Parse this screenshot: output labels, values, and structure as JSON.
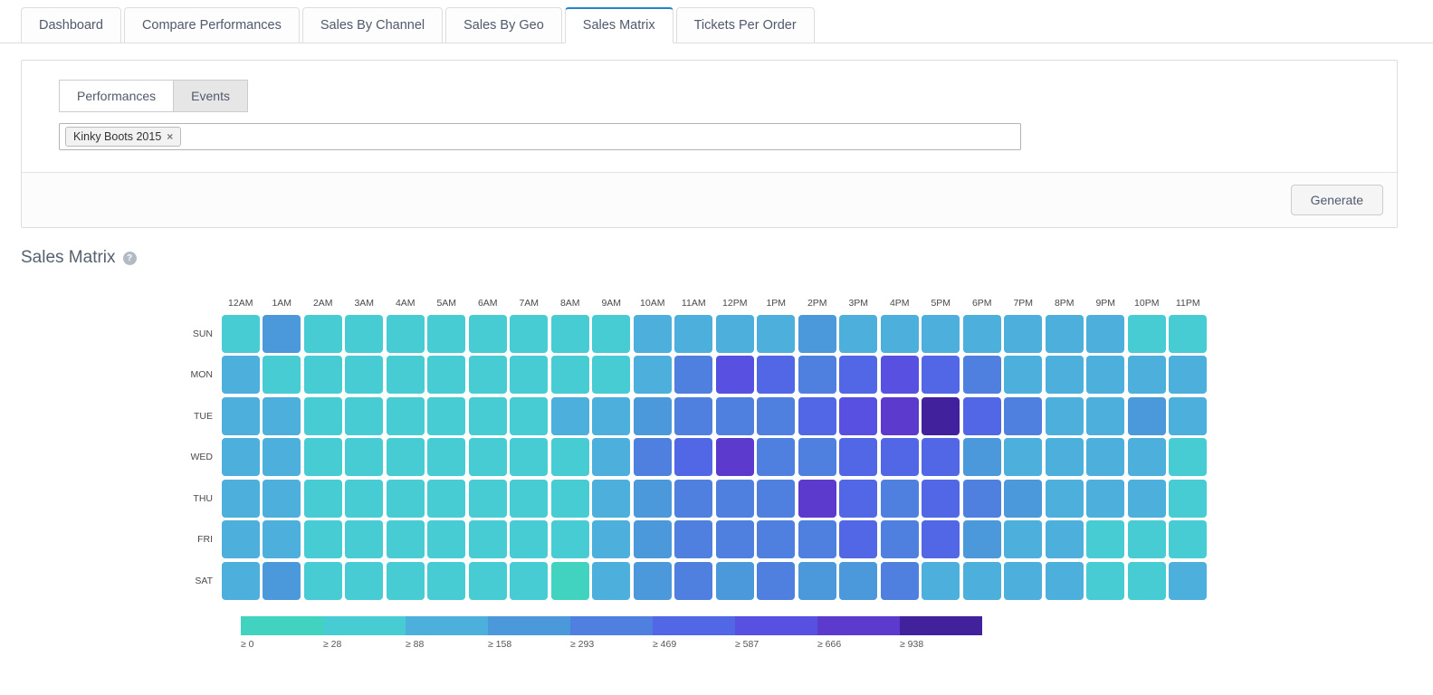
{
  "tabs": {
    "items": [
      {
        "label": "Dashboard",
        "active": false
      },
      {
        "label": "Compare Performances",
        "active": false
      },
      {
        "label": "Sales By Channel",
        "active": false
      },
      {
        "label": "Sales By Geo",
        "active": false
      },
      {
        "label": "Sales Matrix",
        "active": true
      },
      {
        "label": "Tickets Per Order",
        "active": false
      }
    ]
  },
  "filter_panel": {
    "mode_tabs": [
      {
        "label": "Performances",
        "pressed": false
      },
      {
        "label": "Events",
        "pressed": true
      }
    ],
    "selected_tags": [
      {
        "label": "Kinky Boots 2015",
        "remove_icon": "×"
      }
    ],
    "generate_label": "Generate"
  },
  "section": {
    "title": "Sales Matrix",
    "help_icon": "?"
  },
  "chart_data": {
    "type": "heatmap",
    "title": "Sales Matrix",
    "x_labels": [
      "12AM",
      "1AM",
      "2AM",
      "3AM",
      "4AM",
      "5AM",
      "6AM",
      "7AM",
      "8AM",
      "9AM",
      "10AM",
      "11AM",
      "12PM",
      "1PM",
      "2PM",
      "3PM",
      "4PM",
      "5PM",
      "6PM",
      "7PM",
      "8PM",
      "9PM",
      "10PM",
      "11PM"
    ],
    "y_labels": [
      "SUN",
      "MON",
      "TUE",
      "WED",
      "THU",
      "FRI",
      "SAT"
    ],
    "legend_thresholds": [
      0,
      28,
      88,
      158,
      293,
      469,
      587,
      666,
      938
    ],
    "legend_labels": [
      "≥ 0",
      "≥ 28",
      "≥ 88",
      "≥ 158",
      "≥ 293",
      "≥ 469",
      "≥ 587",
      "≥ 666",
      "≥ 938"
    ],
    "palette": [
      "#41d3c0",
      "#48ccd4",
      "#4cafdc",
      "#4b99da",
      "#4f80e0",
      "#5267e6",
      "#5750e0",
      "#5c3ace",
      "#41219c"
    ],
    "cells": [
      [
        1,
        3,
        1,
        1,
        1,
        1,
        1,
        1,
        1,
        1,
        2,
        2,
        2,
        2,
        3,
        2,
        2,
        2,
        2,
        2,
        2,
        2,
        1,
        1
      ],
      [
        2,
        1,
        1,
        1,
        1,
        1,
        1,
        1,
        1,
        1,
        2,
        4,
        6,
        5,
        4,
        5,
        6,
        5,
        4,
        2,
        2,
        2,
        2,
        2
      ],
      [
        2,
        2,
        1,
        1,
        1,
        1,
        1,
        1,
        2,
        2,
        3,
        4,
        4,
        4,
        5,
        6,
        7,
        8,
        5,
        4,
        2,
        2,
        3,
        2
      ],
      [
        2,
        2,
        1,
        1,
        1,
        1,
        1,
        1,
        1,
        2,
        4,
        5,
        7,
        4,
        4,
        5,
        5,
        5,
        3,
        2,
        2,
        2,
        2,
        1
      ],
      [
        2,
        2,
        1,
        1,
        1,
        1,
        1,
        1,
        1,
        2,
        3,
        4,
        4,
        4,
        7,
        5,
        4,
        5,
        4,
        3,
        2,
        2,
        2,
        1
      ],
      [
        2,
        2,
        1,
        1,
        1,
        1,
        1,
        1,
        1,
        2,
        3,
        4,
        4,
        4,
        4,
        5,
        4,
        5,
        3,
        2,
        2,
        1,
        1,
        1
      ],
      [
        2,
        3,
        1,
        1,
        1,
        1,
        1,
        1,
        0,
        2,
        3,
        4,
        3,
        4,
        3,
        3,
        4,
        2,
        2,
        2,
        2,
        1,
        1,
        2
      ]
    ],
    "legend_position": "bottom",
    "grid": false
  }
}
